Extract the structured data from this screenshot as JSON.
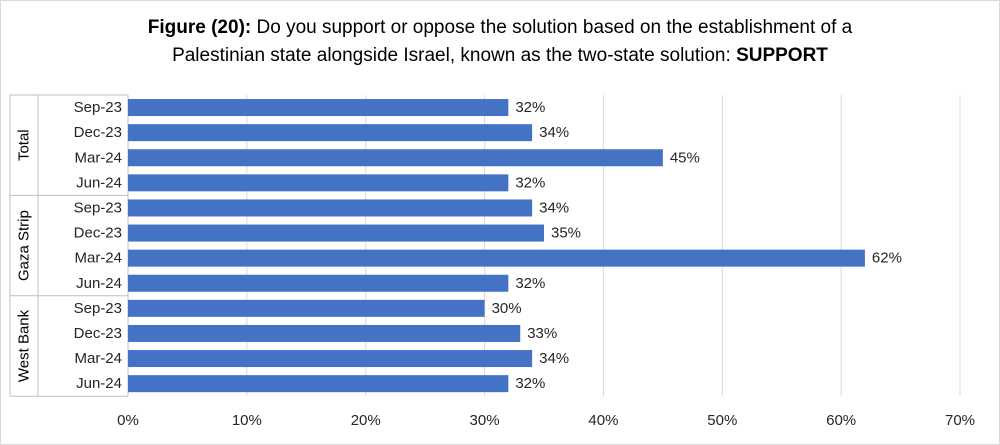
{
  "title": {
    "prefix": "Figure (20):",
    "line1": " Do you support or oppose the solution based on the establishment of a",
    "line2": "Palestinian state alongside Israel, known as the two-state solution: ",
    "emphasis": "SUPPORT"
  },
  "chart_data": {
    "type": "bar",
    "orientation": "horizontal",
    "xlim": [
      0,
      70
    ],
    "xticks": [
      "0%",
      "10%",
      "20%",
      "30%",
      "40%",
      "50%",
      "60%",
      "70%"
    ],
    "grid": true,
    "bar_color": "#4472c4",
    "groups": [
      {
        "name": "Total",
        "categories": [
          "Sep-23",
          "Dec-23",
          "Mar-24",
          "Jun-24"
        ],
        "values": [
          32,
          34,
          45,
          32
        ],
        "labels": [
          "32%",
          "34%",
          "45%",
          "32%"
        ]
      },
      {
        "name": "Gaza Strip",
        "categories": [
          "Sep-23",
          "Dec-23",
          "Mar-24",
          "Jun-24"
        ],
        "values": [
          34,
          35,
          62,
          32
        ],
        "labels": [
          "34%",
          "35%",
          "62%",
          "32%"
        ]
      },
      {
        "name": "West Bank",
        "categories": [
          "Sep-23",
          "Dec-23",
          "Mar-24",
          "Jun-24"
        ],
        "values": [
          30,
          33,
          34,
          32
        ],
        "labels": [
          "30%",
          "33%",
          "34%",
          "32%"
        ]
      }
    ]
  }
}
